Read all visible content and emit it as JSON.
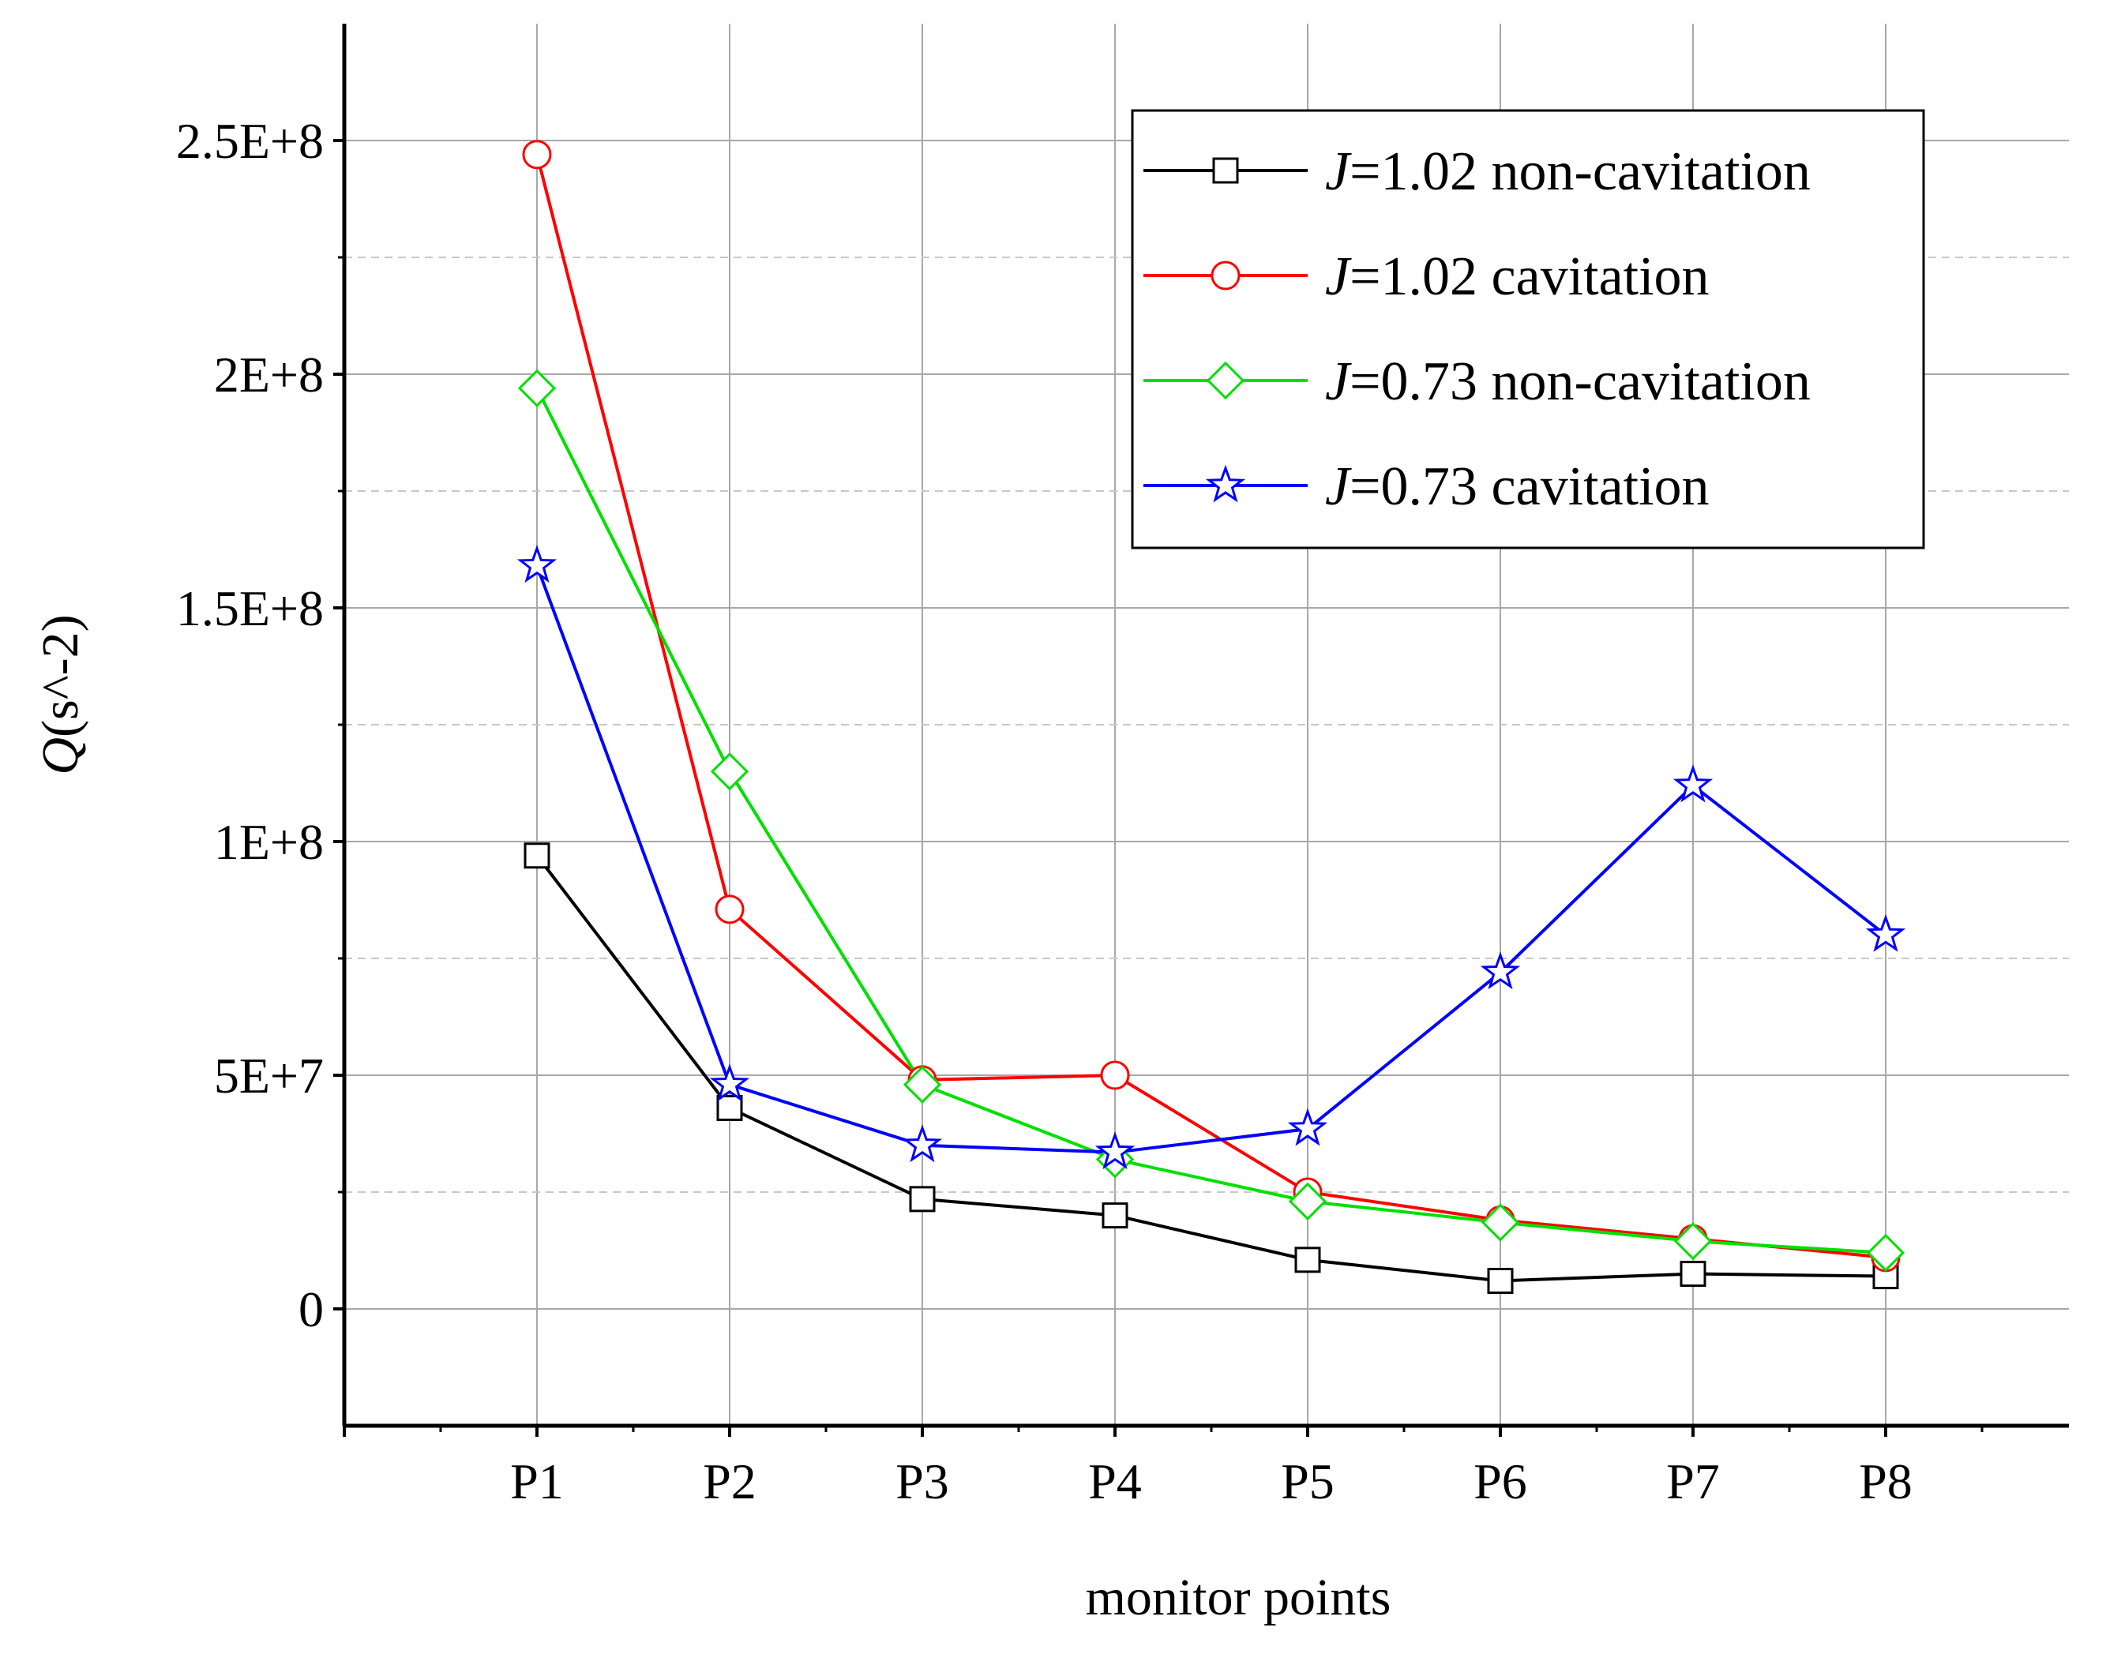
{
  "chart_data": {
    "type": "line",
    "categories": [
      "P1",
      "P2",
      "P3",
      "P4",
      "P5",
      "P6",
      "P7",
      "P8"
    ],
    "xlabel": "monitor points",
    "ylabel": {
      "symbol": "Q",
      "unit": "(s^-2)"
    },
    "ylim": [
      -25000000,
      275000000
    ],
    "y_ticks": [
      0,
      50000000,
      100000000,
      150000000,
      200000000,
      250000000
    ],
    "y_tick_labels": [
      "0",
      "5E+7",
      "1E+8",
      "1.5E+8",
      "2E+8",
      "2.5E+8"
    ],
    "grid": true,
    "legend_position": "top-right",
    "series": [
      {
        "name": "=1.02 non-cavitation",
        "name_symbol": "J",
        "color": "#000000",
        "marker": "square",
        "values": [
          97000000,
          43000000,
          23500000,
          20000000,
          10500000,
          6000000,
          7500000,
          7000000
        ]
      },
      {
        "name": "=1.02 cavitation",
        "name_symbol": "J",
        "color": "#ff0000",
        "marker": "circle",
        "values": [
          247000000,
          85500000,
          49000000,
          50000000,
          25000000,
          19000000,
          15000000,
          11000000
        ]
      },
      {
        "name": "=0.73 non-cavitation",
        "name_symbol": "J",
        "color": "#00e000",
        "marker": "diamond",
        "values": [
          197000000,
          115000000,
          48000000,
          32000000,
          23000000,
          18500000,
          14500000,
          12000000
        ]
      },
      {
        "name": "=0.73 cavitation",
        "name_symbol": "J",
        "color": "#0000ff",
        "marker": "star",
        "values": [
          159000000,
          48000000,
          35000000,
          33500000,
          38500000,
          72000000,
          112000000,
          80000000
        ]
      }
    ]
  }
}
